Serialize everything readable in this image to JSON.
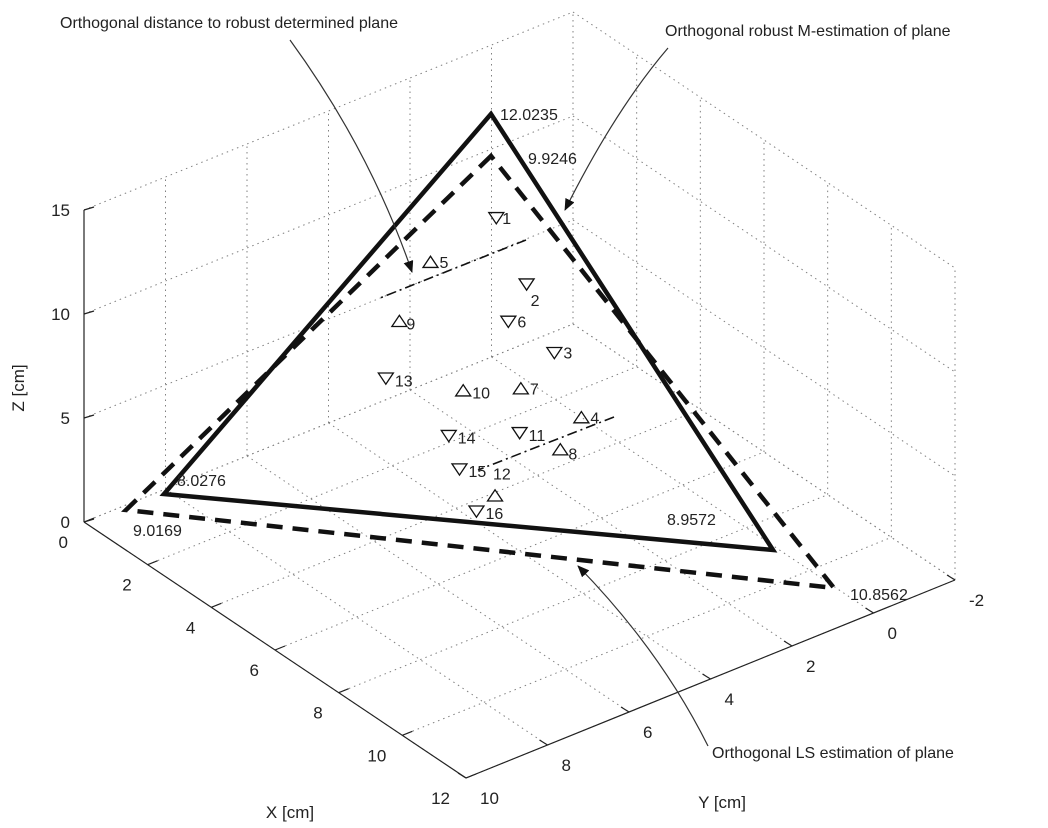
{
  "chart_data": {
    "type": "scatter",
    "projection": "3d",
    "title": "",
    "xlabel": "X [cm]",
    "ylabel": "Y [cm]",
    "zlabel": "Z [cm]",
    "xlim": [
      0,
      12
    ],
    "ylim": [
      -2,
      10
    ],
    "zlim": [
      0,
      15
    ],
    "x_ticks": [
      "0",
      "2",
      "4",
      "6",
      "8",
      "10",
      "12"
    ],
    "y_ticks": [
      "-2",
      "0",
      "2",
      "4",
      "6",
      "8",
      "10"
    ],
    "z_ticks": [
      "0",
      "5",
      "10",
      "15"
    ],
    "grid": true,
    "points": [
      {
        "label": "1",
        "marker": "triangle-down"
      },
      {
        "label": "2",
        "marker": "triangle-down"
      },
      {
        "label": "3",
        "marker": "triangle-down"
      },
      {
        "label": "4",
        "marker": "triangle-up"
      },
      {
        "label": "5",
        "marker": "triangle-up"
      },
      {
        "label": "6",
        "marker": "triangle-down"
      },
      {
        "label": "7",
        "marker": "triangle-up"
      },
      {
        "label": "8",
        "marker": "triangle-up"
      },
      {
        "label": "9",
        "marker": "triangle-up"
      },
      {
        "label": "10",
        "marker": "triangle-up"
      },
      {
        "label": "11",
        "marker": "triangle-down"
      },
      {
        "label": "12",
        "marker": "triangle-up"
      },
      {
        "label": "13",
        "marker": "triangle-down"
      },
      {
        "label": "14",
        "marker": "triangle-down"
      },
      {
        "label": "15",
        "marker": "triangle-down"
      },
      {
        "label": "16",
        "marker": "triangle-down"
      }
    ],
    "planes": [
      {
        "description": "Orthogonal robust M-estimation of plane",
        "style": "solid",
        "vertex_z_labels": [
          "12.0235",
          "8.0276",
          "8.9572"
        ]
      },
      {
        "description": "Orthogonal LS estimation of plane",
        "style": "dashed",
        "vertex_z_labels": [
          "9.9246",
          "9.0169",
          "10.8562"
        ]
      }
    ],
    "annotations": [
      {
        "text": "Orthogonal distance to robust determined plane"
      },
      {
        "text": "Orthogonal robust M-estimation of plane"
      },
      {
        "text": "Orthogonal LS estimation of plane"
      }
    ]
  }
}
